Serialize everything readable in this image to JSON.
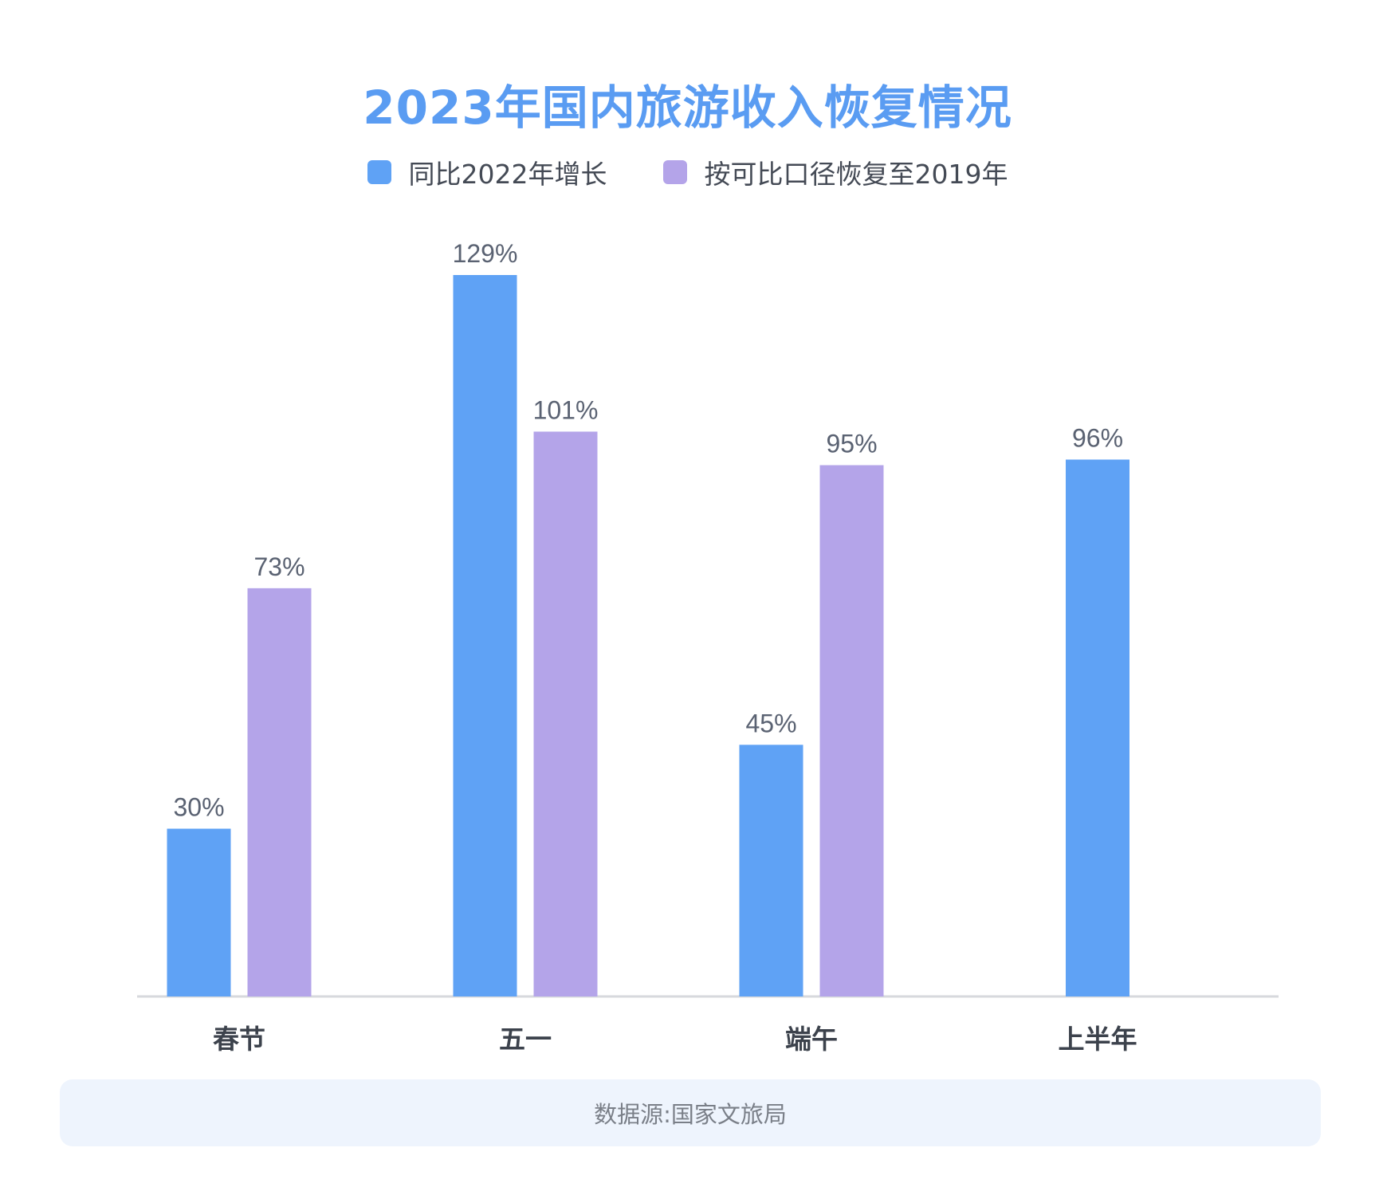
{
  "title": "2023年国内旅游收入恢复情况",
  "source": "数据源:国家文旅局",
  "colors": {
    "title": "#5a9cf2",
    "series1": "#5fa2f5",
    "series2": "#b4a4e9",
    "label": "#5a6272",
    "axis": "#d7d9dd"
  },
  "chart_data": {
    "type": "bar",
    "title": "2023年国内旅游收入恢复情况",
    "categories": [
      "春节",
      "五一",
      "端午",
      "上半年"
    ],
    "series": [
      {
        "name": "同比2022年增长",
        "values": [
          30,
          129,
          45,
          96
        ],
        "labels": [
          "30%",
          "129%",
          "45%",
          "96%"
        ]
      },
      {
        "name": "按可比口径恢复至2019年",
        "values": [
          73,
          101,
          95,
          null
        ],
        "labels": [
          "73%",
          "101%",
          "95%",
          ""
        ]
      }
    ],
    "ylim": [
      0,
      129
    ],
    "grid": false,
    "legend": "top-center",
    "xlabel": "",
    "ylabel": ""
  }
}
